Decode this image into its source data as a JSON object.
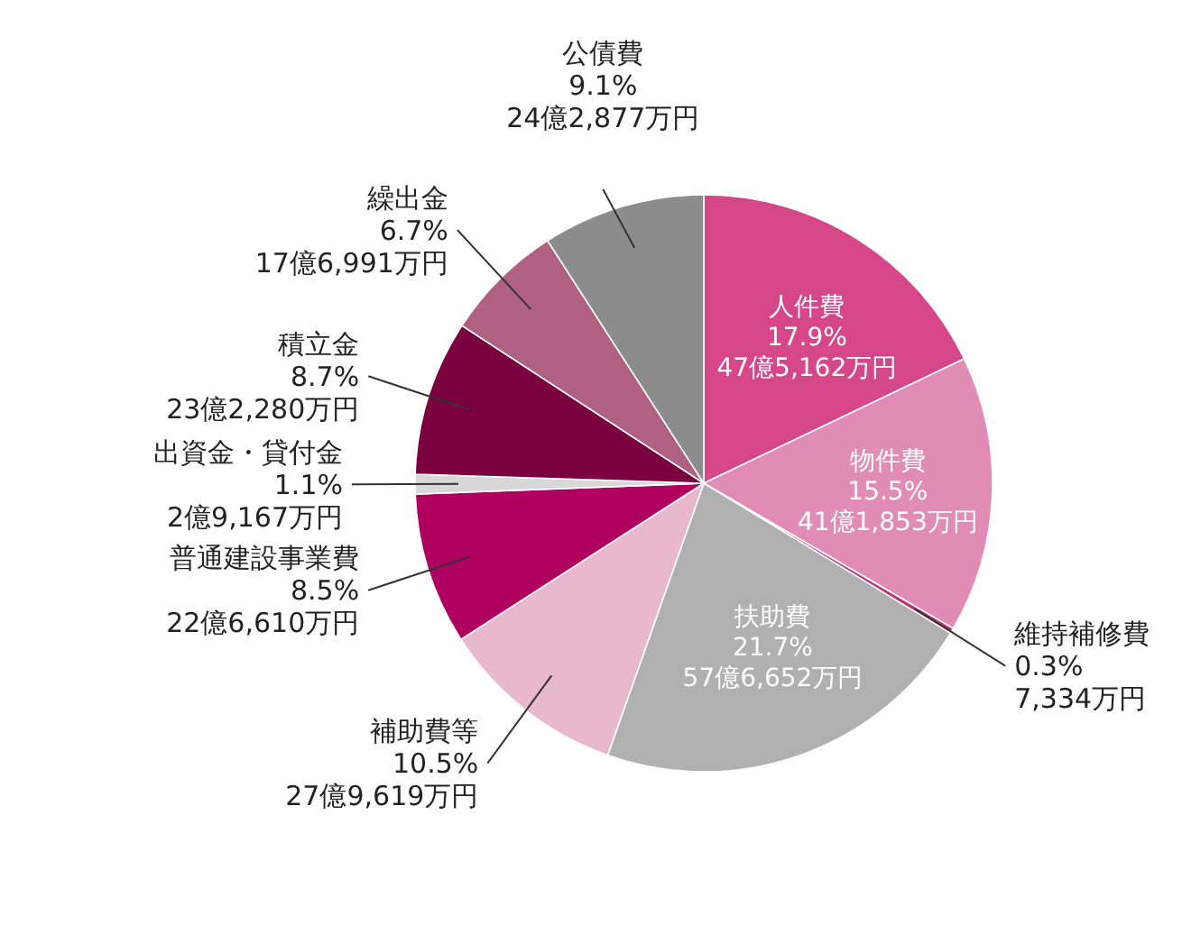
{
  "chart_data": {
    "type": "pie",
    "categories": [
      "人件費",
      "物件費",
      "維持補修費",
      "扶助費",
      "補助費等",
      "普通建設事業費",
      "出資金・貸付金",
      "積立金",
      "繰出金",
      "公債費"
    ],
    "values": [
      17.9,
      15.5,
      0.3,
      21.7,
      10.5,
      8.5,
      1.1,
      8.7,
      6.7,
      9.1
    ],
    "value_labels": [
      "17.9%\n47億5,162万円",
      "15.5%\n41億1,853万円",
      "0.3%\n7,334万円",
      "21.7%\n57億6,652万円",
      "10.5%\n27億9,619万円",
      "8.5%\n22億6,610万円",
      "1.1%\n2億9,167万円",
      "8.7%\n23億2,280万円",
      "6.7%\n17億6,991万円",
      "9.1%\n24億2,877万円"
    ],
    "colors": [
      "#d6478a",
      "#e08cb4",
      "#c0306e",
      "#b0b0b0",
      "#e8b8cc",
      "#b0005f",
      "#d8d8d8",
      "#7a0040",
      "#b06080",
      "#8c8c8c"
    ]
  }
}
